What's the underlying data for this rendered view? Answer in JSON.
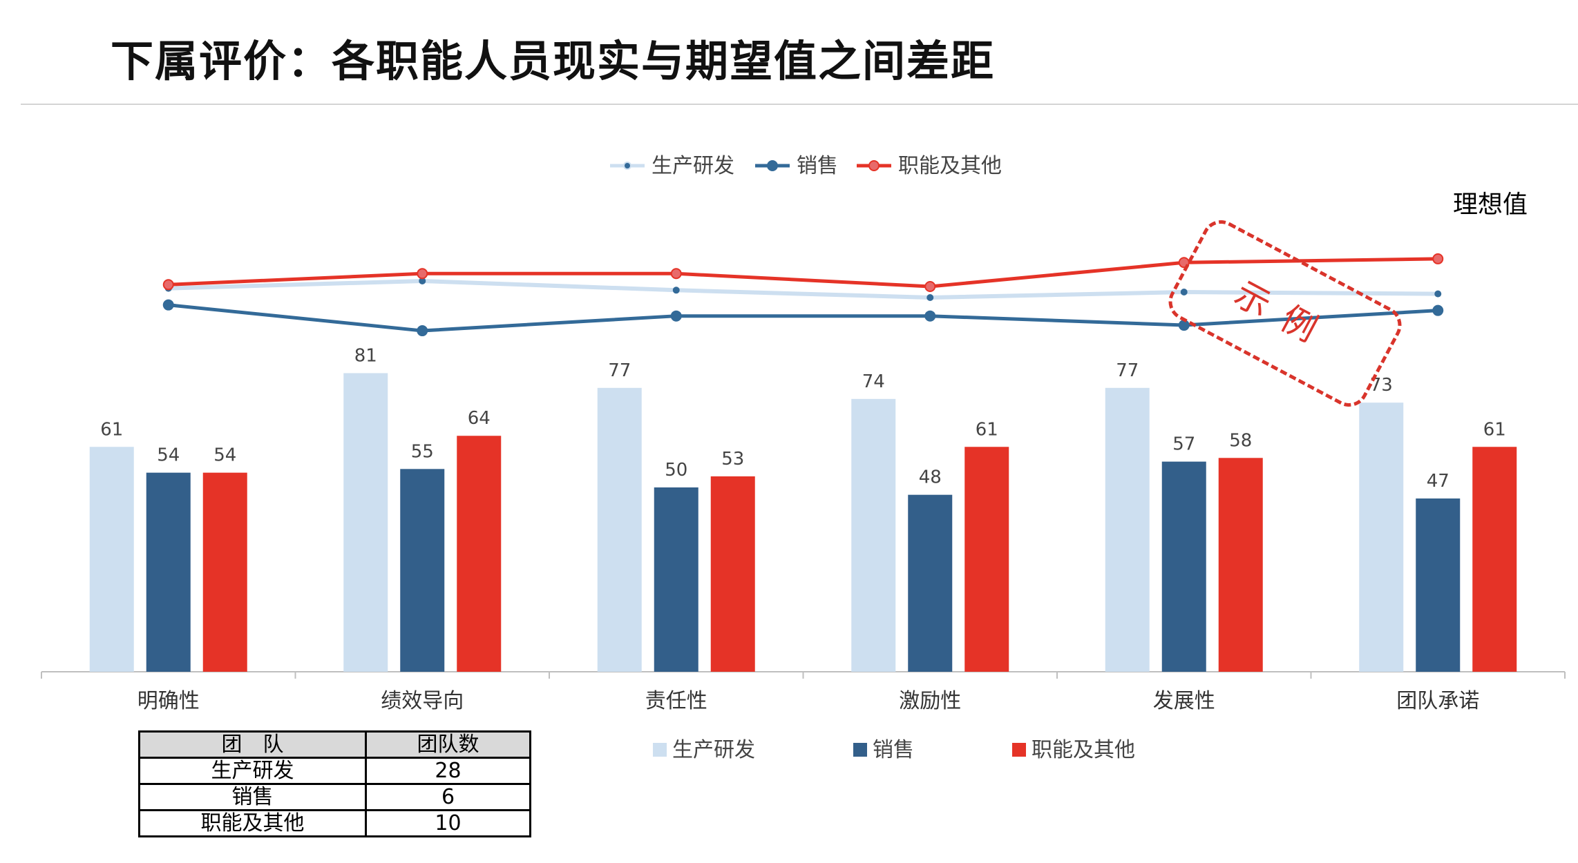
{
  "title": "下属评价：各职能人员现实与期望值之间差距",
  "annotation": "理想值",
  "stamp_text": "示例",
  "colors": {
    "rd": "#cddff0",
    "sales": "#335f8a",
    "other": "#e53327",
    "rd_line": "#cddff0",
    "sales_line": "#336a98",
    "other_line": "#e53327"
  },
  "chart_data": {
    "type": "bar",
    "categories": [
      "明确性",
      "绩效导向",
      "责任性",
      "激励性",
      "发展性",
      "团队承诺"
    ],
    "ylim": [
      0,
      120
    ],
    "series": [
      {
        "name": "生产研发",
        "values": [
          61,
          81,
          77,
          74,
          77,
          73
        ]
      },
      {
        "name": "销售",
        "values": [
          54,
          55,
          50,
          48,
          57,
          47
        ]
      },
      {
        "name": "职能及其他",
        "values": [
          54,
          64,
          53,
          61,
          58,
          61
        ]
      }
    ],
    "ideal_series": [
      {
        "name": "生产研发",
        "values": [
          104,
          106,
          103.5,
          101.5,
          103,
          102.5
        ]
      },
      {
        "name": "销售",
        "values": [
          99.5,
          92.5,
          96.5,
          96.5,
          94,
          98
        ]
      },
      {
        "name": "职能及其他",
        "values": [
          105,
          108,
          108,
          104.5,
          111,
          112
        ]
      }
    ],
    "legend_top": "top-center",
    "legend_bottom": "bottom-center"
  },
  "team_table": {
    "headers": [
      "团　队",
      "团队数"
    ],
    "rows": [
      [
        "生产研发",
        "28"
      ],
      [
        "销售",
        "6"
      ],
      [
        "职能及其他",
        "10"
      ]
    ]
  }
}
